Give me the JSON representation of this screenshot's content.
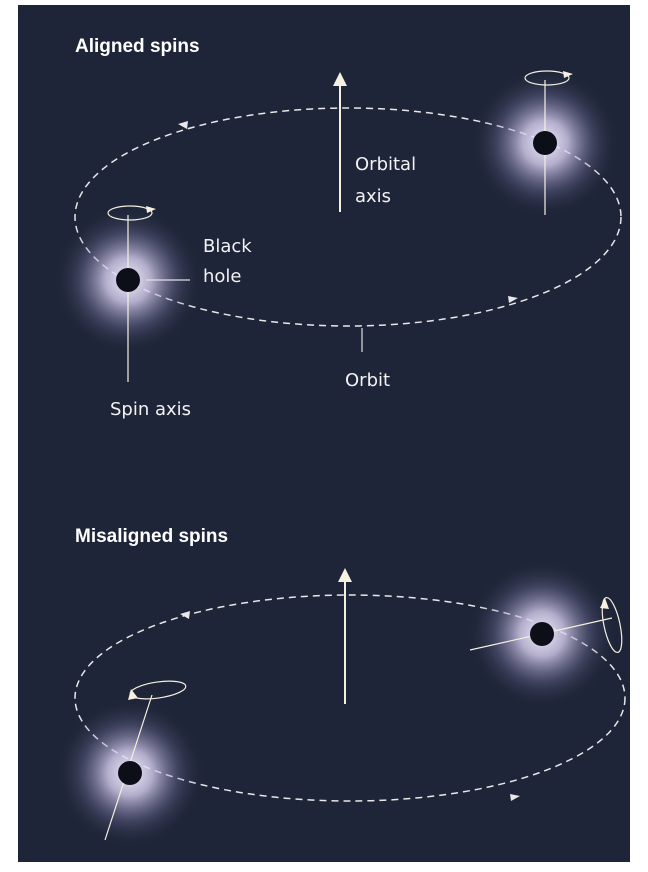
{
  "panels": [
    {
      "title": "Aligned spins",
      "labels": {
        "orbital_axis": [
          "Orbital",
          "axis"
        ],
        "black_hole": [
          "Black",
          "hole"
        ],
        "orbit": "Orbit",
        "spin_axis": "Spin axis"
      }
    },
    {
      "title": "Misaligned spins"
    }
  ]
}
